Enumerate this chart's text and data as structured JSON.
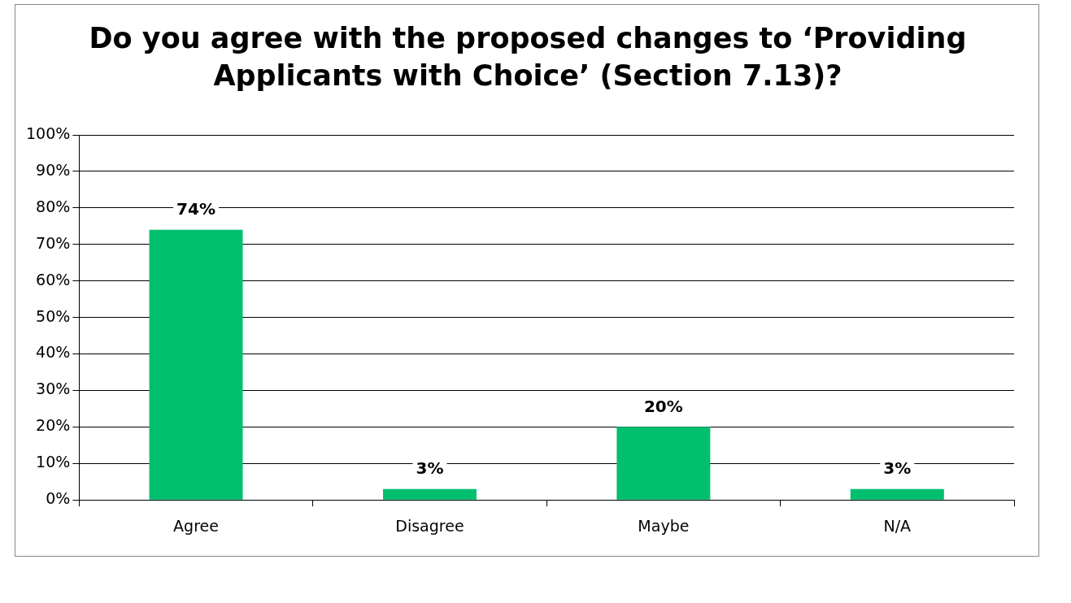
{
  "chart_data": {
    "type": "bar",
    "title": "Do you agree with the proposed changes to ‘Providing Applicants with Choice’ (Section 7.13)?",
    "categories": [
      "Agree",
      "Disagree",
      "Maybe",
      "N/A"
    ],
    "values": [
      74,
      3,
      20,
      3
    ],
    "value_labels": [
      "74%",
      "3%",
      "20%",
      "3%"
    ],
    "color": "#00bf6f",
    "ylim": [
      0,
      100
    ],
    "yticks": [
      {
        "value": 0,
        "label": "0%"
      },
      {
        "value": 10,
        "label": "10%"
      },
      {
        "value": 20,
        "label": "20%"
      },
      {
        "value": 30,
        "label": "30%"
      },
      {
        "value": 40,
        "label": "40%"
      },
      {
        "value": 50,
        "label": "50%"
      },
      {
        "value": 60,
        "label": "60%"
      },
      {
        "value": 70,
        "label": "70%"
      },
      {
        "value": 80,
        "label": "80%"
      },
      {
        "value": 90,
        "label": "90%"
      },
      {
        "value": 100,
        "label": "100%"
      }
    ],
    "grid": "y",
    "legend": false
  }
}
